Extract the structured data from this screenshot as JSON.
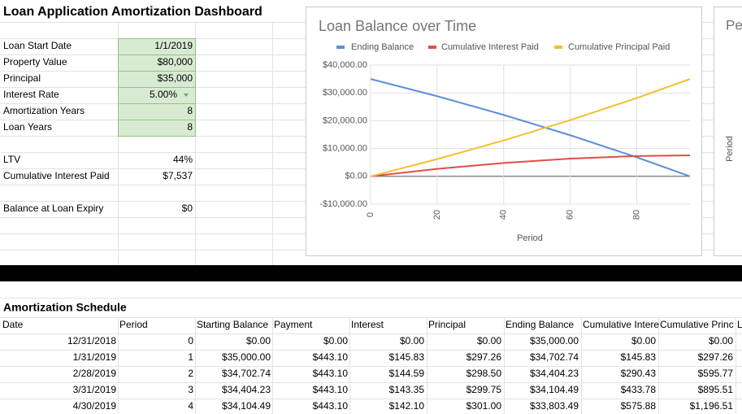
{
  "dashboard": {
    "title": "Loan Application Amortization Dashboard",
    "inputs": [
      {
        "label": "Loan Start Date",
        "value": "1/1/2019"
      },
      {
        "label": "Property Value",
        "value": "$80,000"
      },
      {
        "label": "Principal",
        "value": "$35,000"
      },
      {
        "label": "Interest Rate",
        "value": "5.00%"
      },
      {
        "label": "Amortization Years",
        "value": "8"
      },
      {
        "label": "Loan Years",
        "value": "8"
      }
    ],
    "outputs": [
      {
        "label": "LTV",
        "value": "44%"
      },
      {
        "label": "Cumulative Interest Paid",
        "value": "$7,537"
      },
      {
        "label": "Balance at Loan Expiry",
        "value": "$0"
      }
    ]
  },
  "chart_data": {
    "type": "line",
    "title": "Loan Balance over Time",
    "x_label": "Period",
    "x": [
      0,
      20,
      40,
      60,
      80,
      96
    ],
    "series": [
      {
        "name": "Ending Balance",
        "color": "#5c8fd8",
        "values": [
          35000,
          28814,
          22092,
          14780,
          6849,
          0
        ]
      },
      {
        "name": "Cumulative Interest Paid",
        "color": "#db4f4a",
        "values": [
          0,
          2676,
          4816,
          6366,
          7297,
          7538
        ]
      },
      {
        "name": "Cumulative Principal Paid",
        "color": "#f2c02e",
        "values": [
          0,
          6186,
          12908,
          20220,
          28151,
          35000
        ]
      }
    ],
    "xlim": [
      0,
      96
    ],
    "xticks": [
      0,
      20,
      40,
      60,
      80
    ],
    "ylim": [
      -10000,
      40000
    ],
    "yticks": [
      {
        "value": -10000,
        "label": "-$10,000.00"
      },
      {
        "value": 0,
        "label": "$0.00"
      },
      {
        "value": 10000,
        "label": "$10,000.00"
      },
      {
        "value": 20000,
        "label": "$20,000.00"
      },
      {
        "value": 30000,
        "label": "$30,000.00"
      },
      {
        "value": 40000,
        "label": "$40,000.00"
      }
    ],
    "grid": true,
    "legend": "top"
  },
  "second_chart": {
    "title": "Pe",
    "axis_label": "Period"
  },
  "schedule": {
    "title": "Amortization Schedule",
    "headers": [
      "Date",
      "Period",
      "Starting Balance",
      "Payment",
      "Interest",
      "Principal",
      "Ending Balance",
      "Cumulative Intere",
      "Cumulative Princ",
      "L"
    ],
    "rows": [
      [
        "12/31/2018",
        "0",
        "$0.00",
        "$0.00",
        "$0.00",
        "$0.00",
        "$35,000.00",
        "$0.00",
        "$0.00"
      ],
      [
        "1/31/2019",
        "1",
        "$35,000.00",
        "$443.10",
        "$145.83",
        "$297.26",
        "$34,702.74",
        "$145.83",
        "$297.26"
      ],
      [
        "2/28/2019",
        "2",
        "$34,702.74",
        "$443.10",
        "$144.59",
        "$298.50",
        "$34,404.23",
        "$290.43",
        "$595.77"
      ],
      [
        "3/31/2019",
        "3",
        "$34,404.23",
        "$443.10",
        "$143.35",
        "$299.75",
        "$34,104.49",
        "$433.78",
        "$895.51"
      ],
      [
        "4/30/2019",
        "4",
        "$34,104.49",
        "$443.10",
        "$142.10",
        "$301.00",
        "$33,803.49",
        "$575.88",
        "$1,196.51"
      ]
    ]
  }
}
